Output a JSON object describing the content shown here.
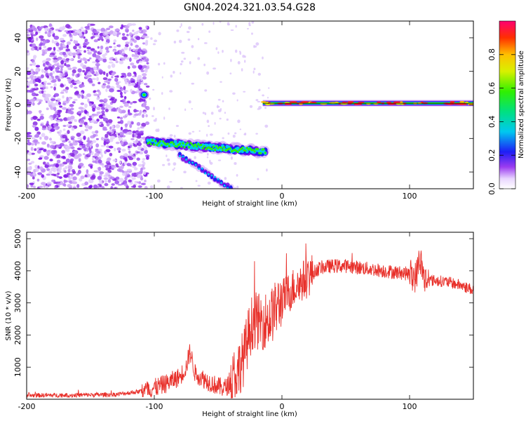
{
  "title": "GN04.2024.321.03.54.G28",
  "chart_data": [
    {
      "type": "heatmap",
      "xlabel": "Height of straight line (km)",
      "ylabel": "Frequency (Hz)",
      "xlim": [
        -200,
        150
      ],
      "ylim": [
        -50,
        50
      ],
      "xticks": [
        -200,
        -100,
        0,
        100
      ],
      "yticks": [
        -40,
        -20,
        0,
        20,
        40
      ],
      "colorbar": {
        "label": "Normalized spectral amplitude",
        "range": [
          0,
          1
        ],
        "ticks": [
          "0.0",
          "0.2",
          "0.4",
          "0.6",
          "0.8"
        ]
      },
      "features": [
        {
          "name": "noise",
          "x": [
            -200,
            -105
          ],
          "y": [
            -50,
            48
          ]
        },
        {
          "name": "descending-track",
          "x": [
            -105,
            -13
          ],
          "y_start": -22,
          "y_end": -28
        },
        {
          "name": "lower-branch",
          "x": [
            -80,
            -40
          ],
          "y_start": -30,
          "y_end": -50
        },
        {
          "name": "carrier-line",
          "x": [
            -15,
            150
          ],
          "y": 1
        }
      ]
    },
    {
      "type": "line",
      "xlabel": "Height of straight line (km)",
      "ylabel": "SNR (10 * v/v)",
      "xlim": [
        -200,
        150
      ],
      "ylim": [
        0,
        5200
      ],
      "xticks": [
        -200,
        -100,
        0,
        100
      ],
      "yticks": [
        1000,
        2000,
        3000,
        4000,
        5000
      ],
      "color": "#e8302a",
      "series": [
        {
          "x": [
            -200,
            -160,
            -130,
            -110,
            -100,
            -90,
            -80,
            -75,
            -72,
            -68,
            -60,
            -50,
            -45,
            -40,
            -30,
            -25,
            -22,
            -18,
            -10,
            -5,
            0,
            10,
            20,
            30,
            40,
            50,
            60,
            70,
            80,
            90,
            100,
            105,
            108,
            112,
            120,
            130,
            140,
            150
          ],
          "y": [
            120,
            130,
            150,
            250,
            350,
            500,
            700,
            1000,
            1500,
            800,
            600,
            400,
            350,
            500,
            1300,
            2200,
            2500,
            2400,
            2500,
            2800,
            3100,
            3500,
            3800,
            4100,
            4150,
            4150,
            4100,
            4050,
            4000,
            3950,
            3900,
            3800,
            4400,
            3700,
            3700,
            3650,
            3550,
            3400
          ]
        }
      ]
    }
  ]
}
